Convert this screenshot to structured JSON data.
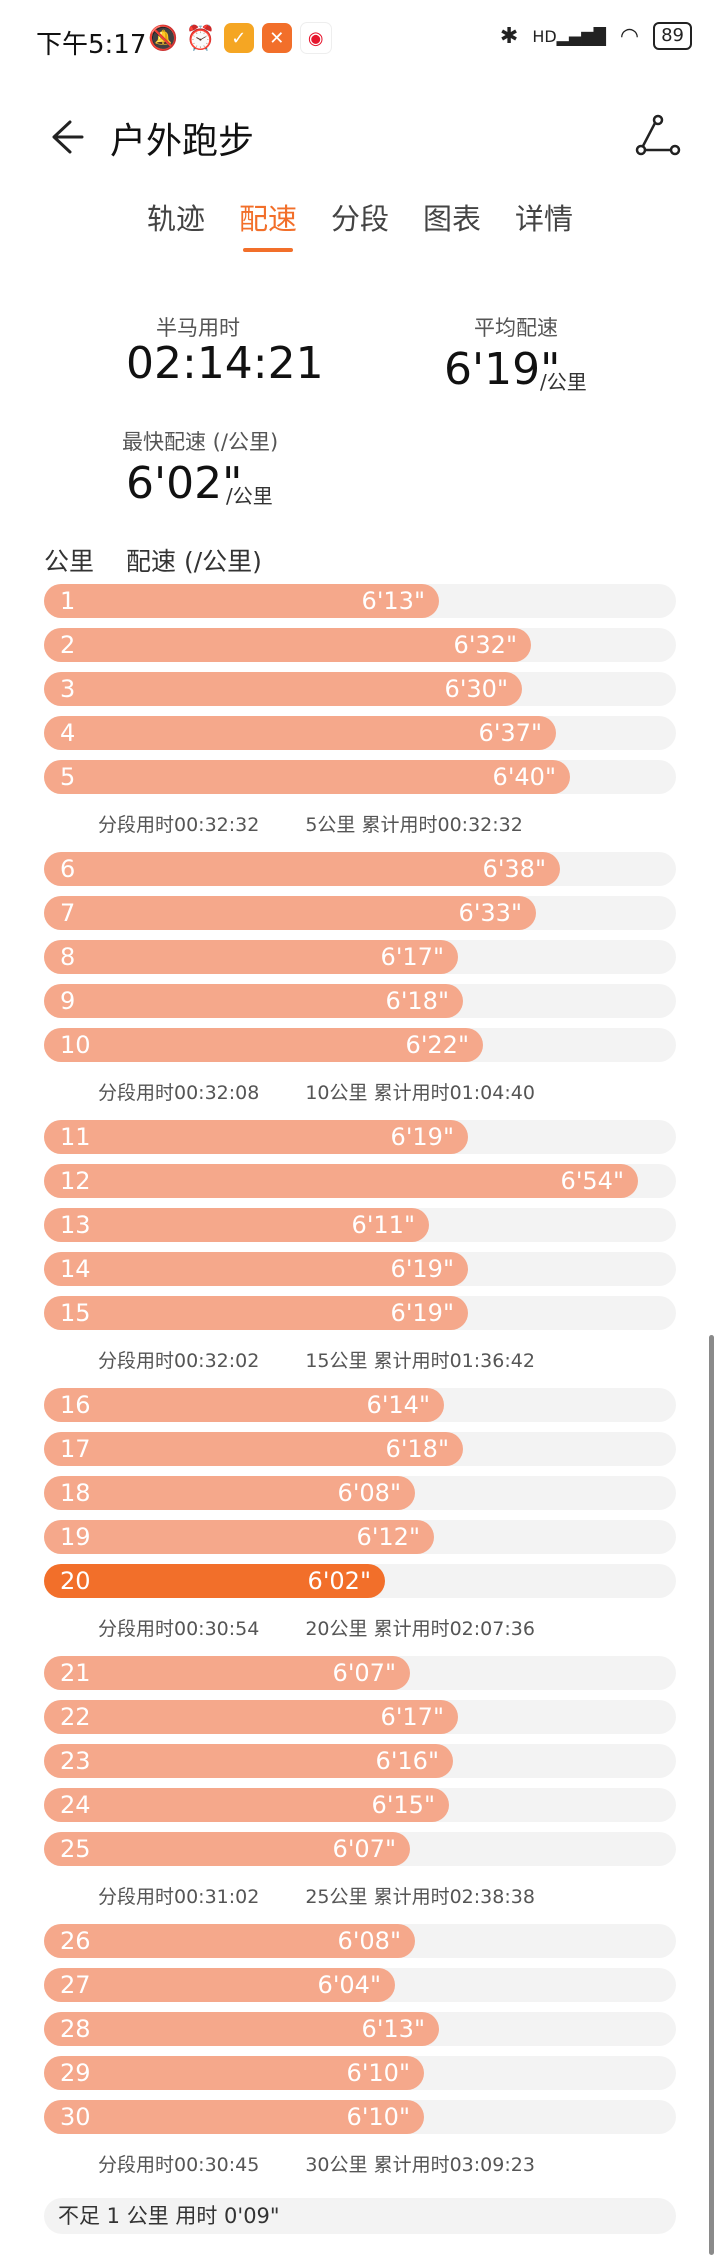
{
  "status_bar": {
    "time": "下午5:17",
    "battery": "89",
    "network": "HD"
  },
  "app_bar": {
    "title": "户外跑步"
  },
  "tabs": [
    {
      "label": "轨迹",
      "active": false
    },
    {
      "label": "配速",
      "active": true
    },
    {
      "label": "分段",
      "active": false
    },
    {
      "label": "图表",
      "active": false
    },
    {
      "label": "详情",
      "active": false
    }
  ],
  "summary": {
    "half_marathon_label": "半马用时",
    "half_marathon_value": "02:14:21",
    "avg_pace_label": "平均配速",
    "avg_pace_value": "6'19\"",
    "avg_pace_unit": "/公里",
    "fastest_label": "最快配速 (/公里)",
    "fastest_value": "6'02\"",
    "fastest_unit": "/公里"
  },
  "list_header": {
    "km": "公里",
    "pace": "配速 (/公里)"
  },
  "accent_color": "#f26f2a",
  "bar_color": "#f5a88b",
  "splits": [
    {
      "km": "1",
      "pace": "6'13\"",
      "seconds": 373
    },
    {
      "km": "2",
      "pace": "6'32\"",
      "seconds": 392
    },
    {
      "km": "3",
      "pace": "6'30\"",
      "seconds": 390
    },
    {
      "km": "4",
      "pace": "6'37\"",
      "seconds": 397
    },
    {
      "km": "5",
      "pace": "6'40\"",
      "seconds": 400
    },
    {
      "km": "6",
      "pace": "6'38\"",
      "seconds": 398
    },
    {
      "km": "7",
      "pace": "6'33\"",
      "seconds": 393
    },
    {
      "km": "8",
      "pace": "6'17\"",
      "seconds": 377
    },
    {
      "km": "9",
      "pace": "6'18\"",
      "seconds": 378
    },
    {
      "km": "10",
      "pace": "6'22\"",
      "seconds": 382
    },
    {
      "km": "11",
      "pace": "6'19\"",
      "seconds": 379
    },
    {
      "km": "12",
      "pace": "6'54\"",
      "seconds": 414
    },
    {
      "km": "13",
      "pace": "6'11\"",
      "seconds": 371
    },
    {
      "km": "14",
      "pace": "6'19\"",
      "seconds": 379
    },
    {
      "km": "15",
      "pace": "6'19\"",
      "seconds": 379
    },
    {
      "km": "16",
      "pace": "6'14\"",
      "seconds": 374
    },
    {
      "km": "17",
      "pace": "6'18\"",
      "seconds": 378
    },
    {
      "km": "18",
      "pace": "6'08\"",
      "seconds": 368
    },
    {
      "km": "19",
      "pace": "6'12\"",
      "seconds": 372
    },
    {
      "km": "20",
      "pace": "6'02\"",
      "seconds": 362,
      "fastest": true
    },
    {
      "km": "21",
      "pace": "6'07\"",
      "seconds": 367
    },
    {
      "km": "22",
      "pace": "6'17\"",
      "seconds": 377
    },
    {
      "km": "23",
      "pace": "6'16\"",
      "seconds": 376
    },
    {
      "km": "24",
      "pace": "6'15\"",
      "seconds": 375
    },
    {
      "km": "25",
      "pace": "6'07\"",
      "seconds": 367
    },
    {
      "km": "26",
      "pace": "6'08\"",
      "seconds": 368
    },
    {
      "km": "27",
      "pace": "6'04\"",
      "seconds": 364
    },
    {
      "km": "28",
      "pace": "6'13\"",
      "seconds": 373
    },
    {
      "km": "29",
      "pace": "6'10\"",
      "seconds": 370
    },
    {
      "km": "30",
      "pace": "6'10\"",
      "seconds": 370
    }
  ],
  "segments": [
    {
      "segment_time": "分段用时00:32:32",
      "km_mark": "5公里",
      "cumulative": "累计用时00:32:32"
    },
    {
      "segment_time": "分段用时00:32:08",
      "km_mark": "10公里",
      "cumulative": "累计用时01:04:40"
    },
    {
      "segment_time": "分段用时00:32:02",
      "km_mark": "15公里",
      "cumulative": "累计用时01:36:42"
    },
    {
      "segment_time": "分段用时00:30:54",
      "km_mark": "20公里",
      "cumulative": "累计用时02:07:36"
    },
    {
      "segment_time": "分段用时00:31:02",
      "km_mark": "25公里",
      "cumulative": "累计用时02:38:38"
    },
    {
      "segment_time": "分段用时00:30:45",
      "km_mark": "30公里",
      "cumulative": "累计用时03:09:23"
    }
  ],
  "remainder": "不足 1 公里 用时 0'09\""
}
